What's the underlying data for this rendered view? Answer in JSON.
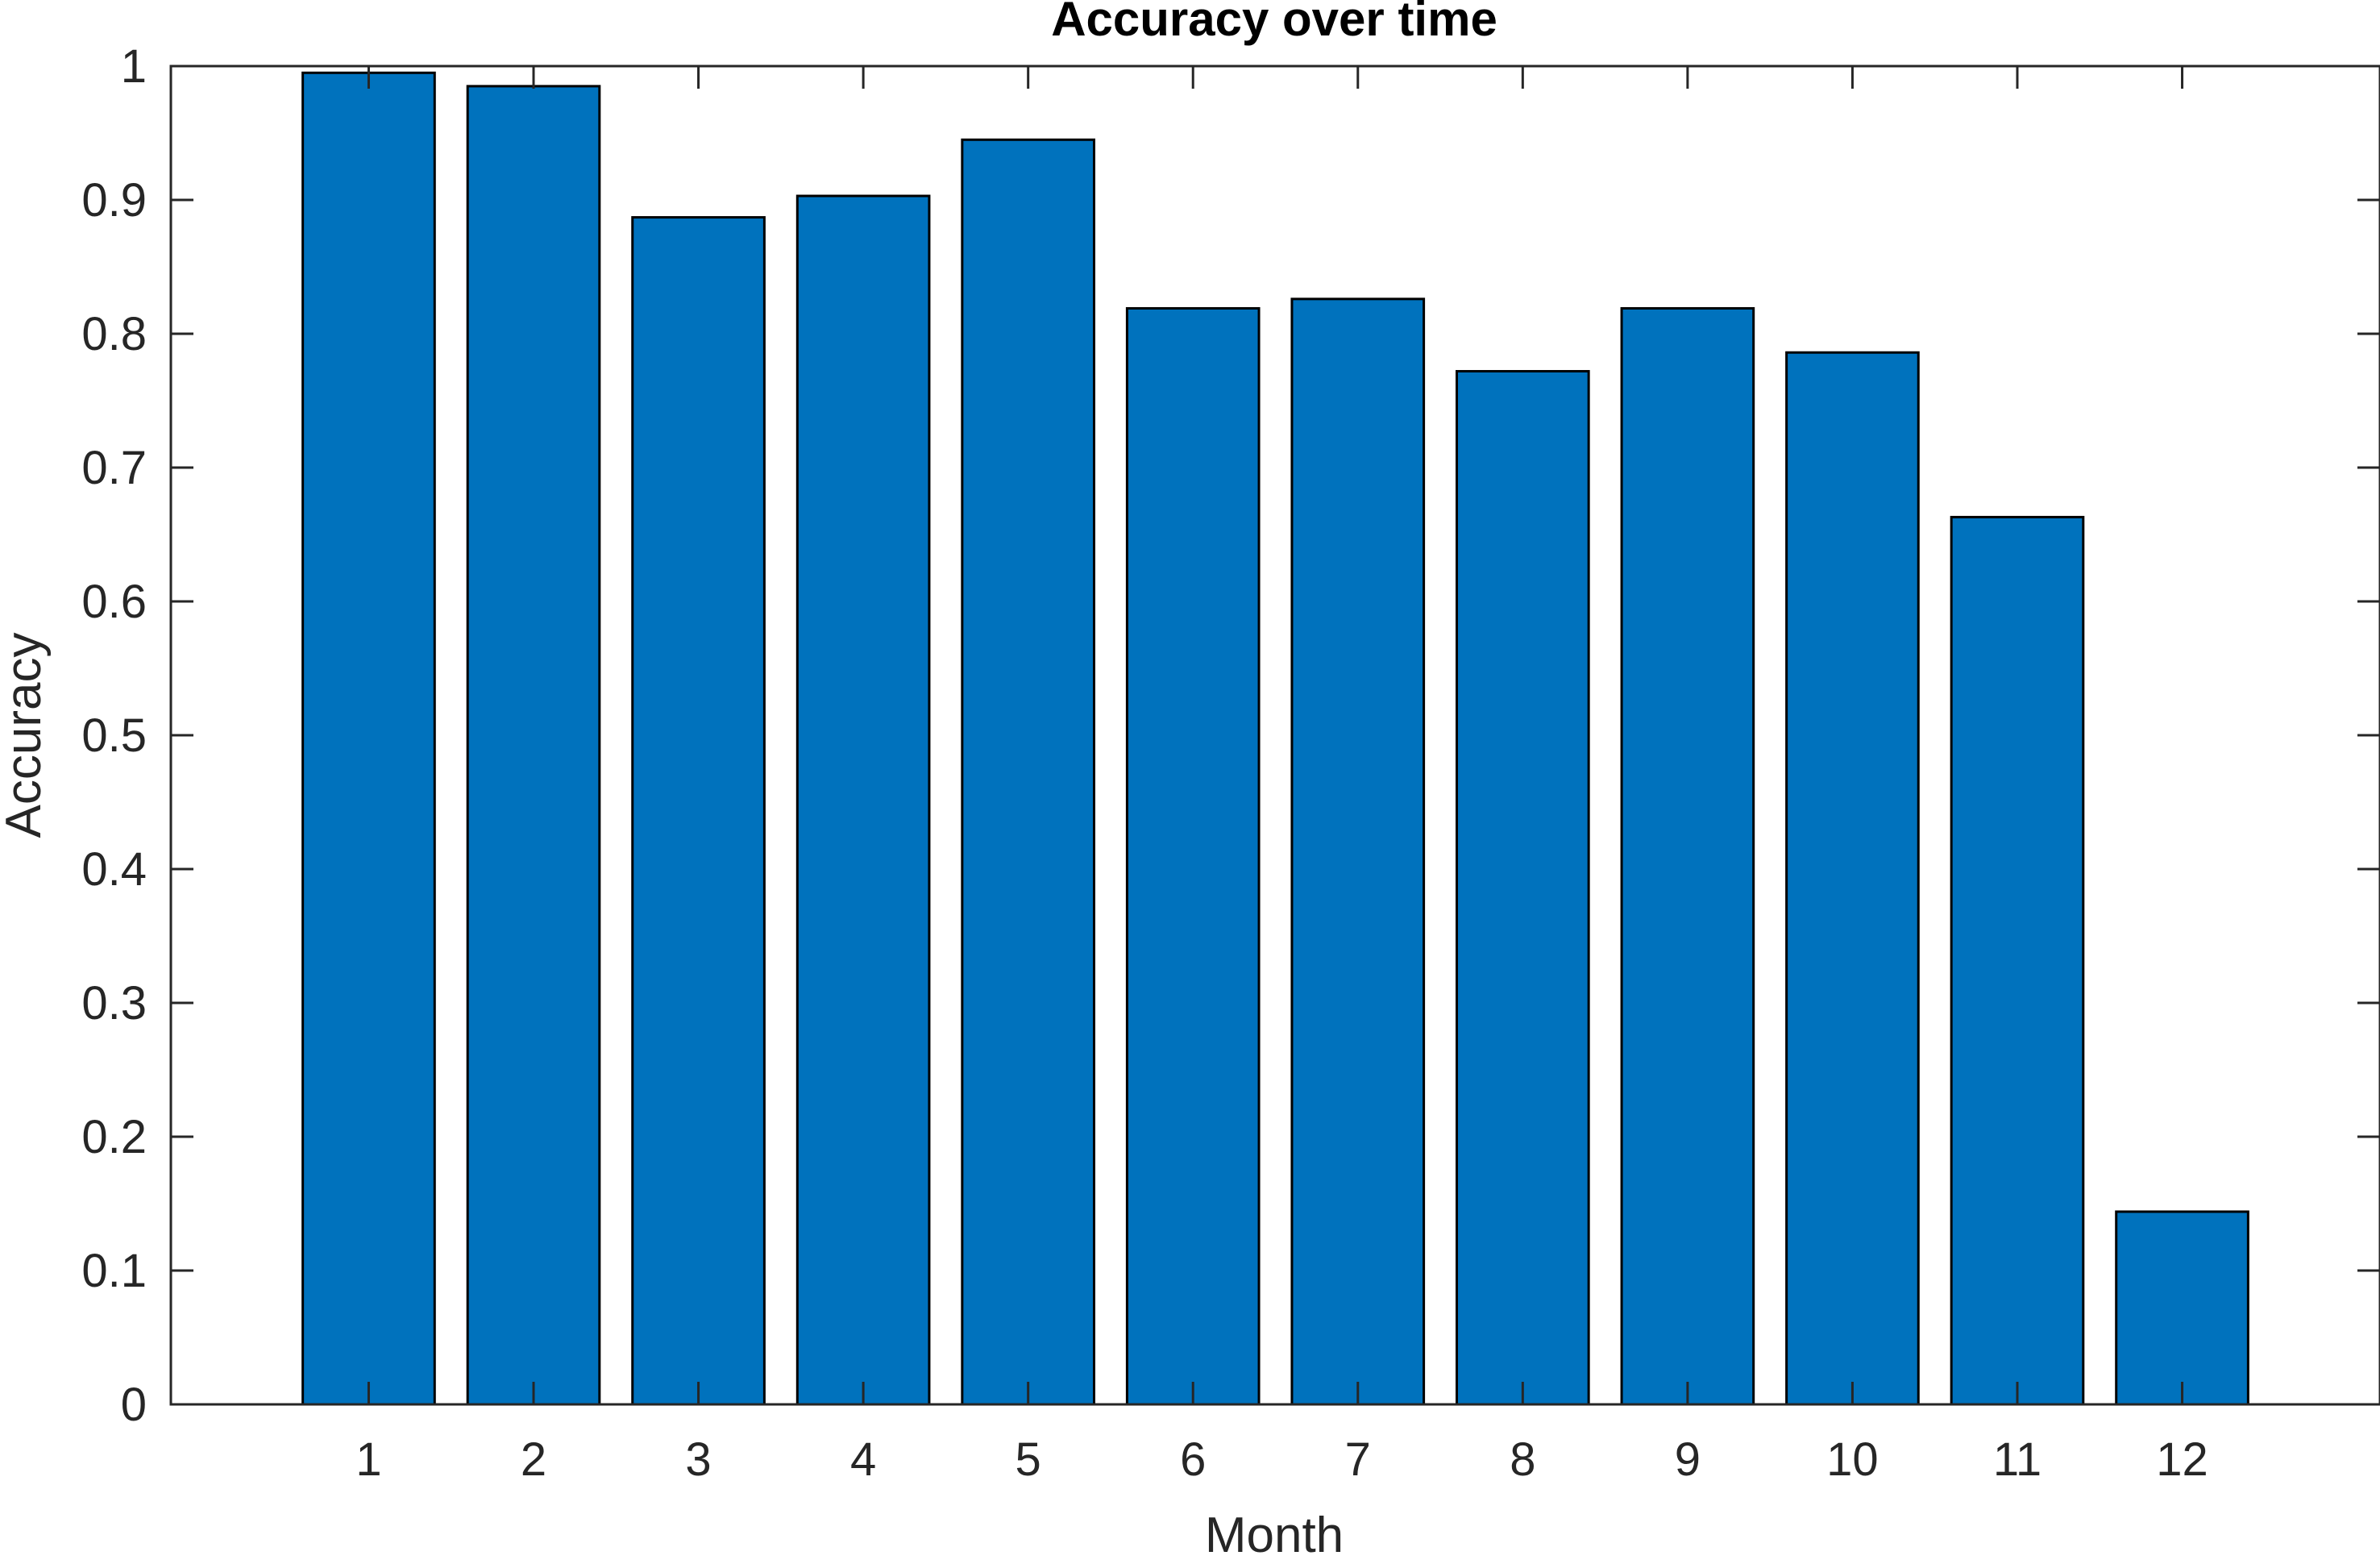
{
  "chart_data": {
    "type": "bar",
    "title": "Accuracy over time",
    "xlabel": "Month",
    "ylabel": "Accuracy",
    "categories": [
      "1",
      "2",
      "3",
      "4",
      "5",
      "6",
      "7",
      "8",
      "9",
      "10",
      "11",
      "12"
    ],
    "values": [
      0.995,
      0.985,
      0.887,
      0.903,
      0.945,
      0.819,
      0.826,
      0.772,
      0.819,
      0.786,
      0.663,
      0.144
    ],
    "ylim": [
      0,
      1
    ],
    "yticks": [
      "0",
      "0.1",
      "0.2",
      "0.3",
      "0.4",
      "0.5",
      "0.6",
      "0.7",
      "0.8",
      "0.9",
      "1"
    ],
    "xlim": [
      -0.2,
      13.2
    ],
    "grid": false,
    "bar_color": "#0072BD",
    "edge_color": "#000000",
    "axis_color": "#262626"
  }
}
